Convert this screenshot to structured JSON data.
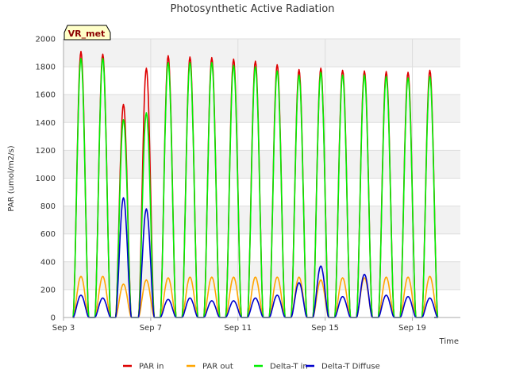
{
  "chart_data": {
    "type": "line",
    "title": "Photosynthetic Active Radiation",
    "xlabel": "Time",
    "ylabel": "PAR (umol/m2/s)",
    "ylim": [
      0,
      2000
    ],
    "yticks": [
      0,
      200,
      400,
      600,
      800,
      1000,
      1200,
      1400,
      1600,
      1800,
      2000
    ],
    "xlim_days": [
      3,
      21.2
    ],
    "xticks": [
      {
        "day": 3,
        "label": "Sep 3"
      },
      {
        "day": 7,
        "label": "Sep 7"
      },
      {
        "day": 11,
        "label": "Sep 11"
      },
      {
        "day": 15,
        "label": "Sep 15"
      },
      {
        "day": 19,
        "label": "Sep 19"
      }
    ],
    "grid": true,
    "badge": "VR_met",
    "legend_position": "bottom",
    "day_centers": [
      3.8,
      4.8,
      5.75,
      6.8,
      7.8,
      8.8,
      9.8,
      10.8,
      11.8,
      12.8,
      13.8,
      14.8,
      15.8,
      16.8,
      17.8,
      18.8,
      19.8
    ],
    "day_half_width": 0.36,
    "series": [
      {
        "name": "PAR in",
        "color": "#dd0000",
        "daily_peaks": [
          1910,
          1890,
          1530,
          1790,
          1880,
          1870,
          1865,
          1855,
          1840,
          1815,
          1780,
          1790,
          1775,
          1770,
          1765,
          1760,
          1775
        ]
      },
      {
        "name": "PAR out",
        "color": "#ffa500",
        "daily_peaks": [
          295,
          295,
          240,
          270,
          285,
          290,
          290,
          290,
          290,
          290,
          290,
          270,
          285,
          285,
          290,
          290,
          295
        ]
      },
      {
        "name": "Delta-T in",
        "color": "#00ee00",
        "daily_peaks": [
          1860,
          1860,
          1420,
          1470,
          1830,
          1830,
          1830,
          1810,
          1800,
          1770,
          1740,
          1760,
          1740,
          1740,
          1730,
          1720,
          1730
        ]
      },
      {
        "name": "Delta-T Diffuse",
        "color": "#0000cc",
        "daily_peaks": [
          160,
          140,
          860,
          780,
          130,
          140,
          120,
          120,
          140,
          160,
          250,
          370,
          150,
          310,
          160,
          150,
          140
        ]
      }
    ]
  }
}
